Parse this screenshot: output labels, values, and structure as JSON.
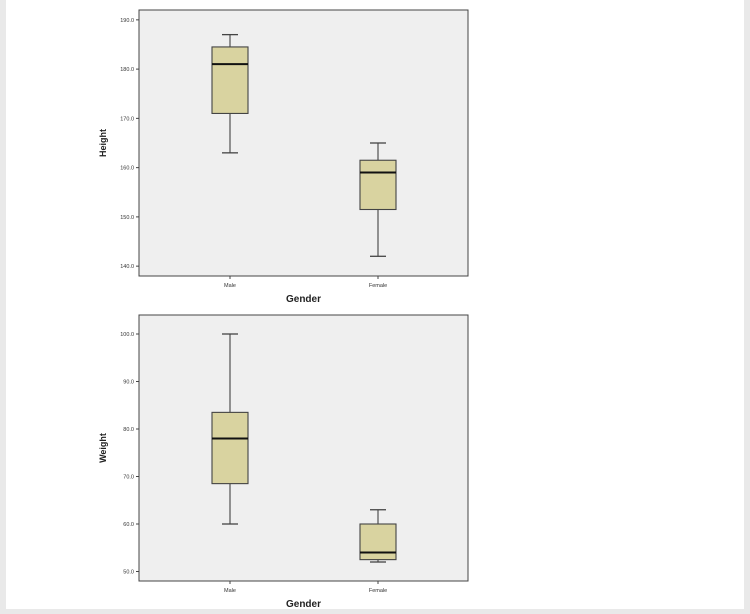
{
  "chart_data": [
    {
      "type": "box",
      "title": "",
      "xlabel": "Gender",
      "ylabel": "Height",
      "ylim": [
        138.0,
        192.0
      ],
      "yticks": [
        "140.0",
        "150.0",
        "160.0",
        "170.0",
        "180.0",
        "190.0"
      ],
      "categories": [
        "Male",
        "Female"
      ],
      "boxes": [
        {
          "category": "Male",
          "min": 163.0,
          "q1": 171.0,
          "median": 181.0,
          "q3": 184.5,
          "max": 187.0
        },
        {
          "category": "Female",
          "min": 142.0,
          "q1": 151.5,
          "median": 159.0,
          "q3": 161.5,
          "max": 165.0
        }
      ],
      "grid": false
    },
    {
      "type": "box",
      "title": "",
      "xlabel": "Gender",
      "ylabel": "Weight",
      "ylim": [
        48.0,
        104.0
      ],
      "yticks": [
        "50.0",
        "60.0",
        "70.0",
        "80.0",
        "90.0",
        "100.0"
      ],
      "categories": [
        "Male",
        "Female"
      ],
      "boxes": [
        {
          "category": "Male",
          "min": 60.0,
          "q1": 68.5,
          "median": 78.0,
          "q3": 83.5,
          "max": 100.0
        },
        {
          "category": "Female",
          "min": 52.0,
          "q1": 52.5,
          "median": 54.0,
          "q3": 60.0,
          "max": 63.0
        }
      ],
      "grid": false
    }
  ],
  "colors": {
    "box_fill": "#d9d3a0",
    "plot_bg": "#efefef",
    "axis": "#444444",
    "median": "#111111"
  }
}
